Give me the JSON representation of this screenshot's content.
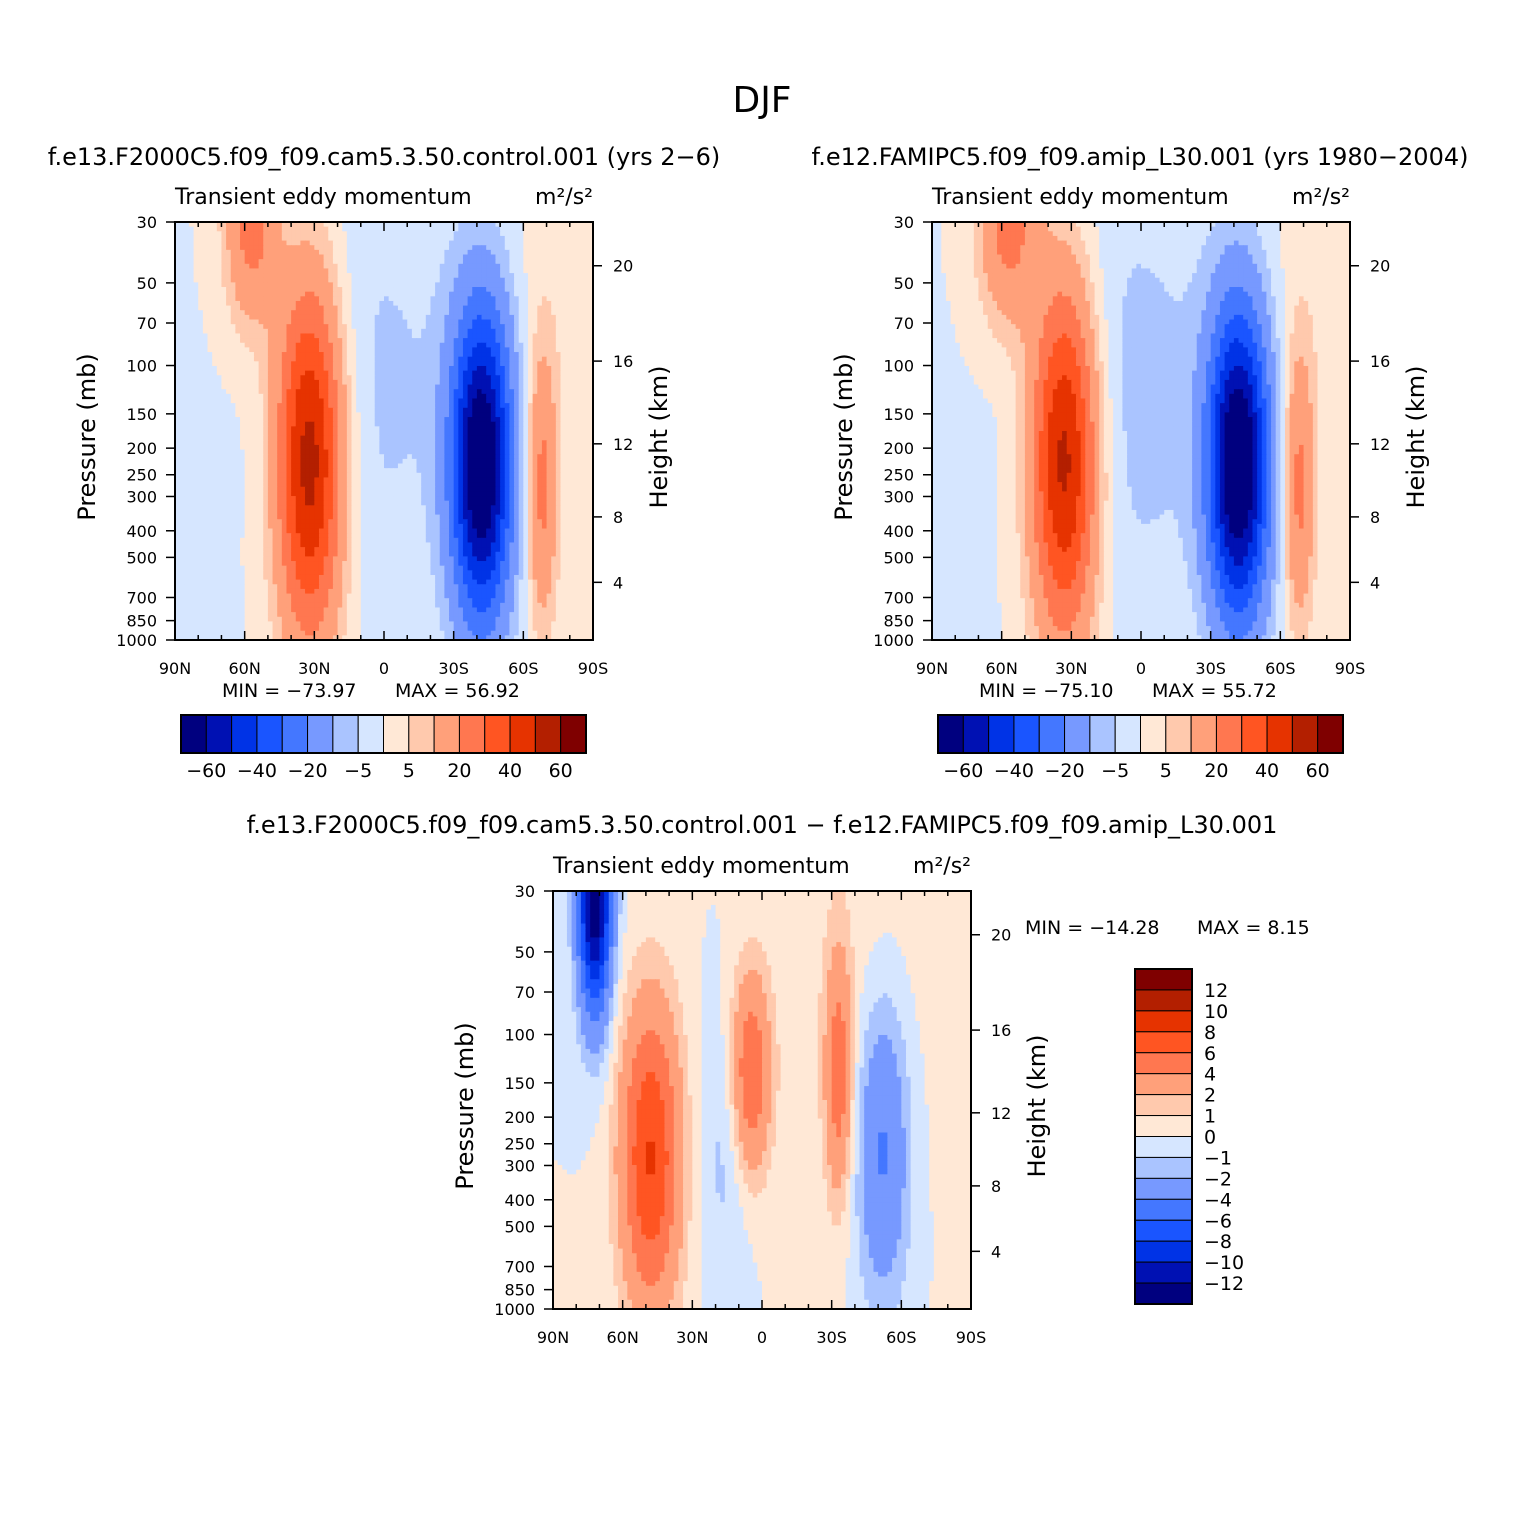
{
  "page_title": "DJF",
  "colors": {
    "main_levels": [
      "#00007f",
      "#0011b3",
      "#0033e6",
      "#1a55ff",
      "#4477ff",
      "#7799ff",
      "#aac4ff",
      "#d6e6ff",
      "#ffe8d6",
      "#ffc9ad",
      "#ffa07a",
      "#ff7750",
      "#ff5522",
      "#e63300",
      "#b31f00",
      "#7f0000"
    ],
    "diff_levels": [
      "#00007f",
      "#0011b3",
      "#0033e6",
      "#1a55ff",
      "#4477ff",
      "#7799ff",
      "#aac4ff",
      "#d6e6ff",
      "#ffe8d6",
      "#ffc9ad",
      "#ffa07a",
      "#ff7750",
      "#ff5522",
      "#e63300",
      "#b31f00",
      "#7f0000"
    ]
  },
  "chart_data": [
    {
      "id": "panel1",
      "type": "heatmap",
      "title": "f.e13.F2000C5.f09_f09.cam5.3.50.control.001 (yrs 2−6)",
      "subtitle": "Transient eddy momentum",
      "units": "m²/s²",
      "xlabel": "",
      "ylabel": "Pressure (mb)",
      "y2label": "Height (km)",
      "x_ticks": [
        "90N",
        "60N",
        "30N",
        "0",
        "30S",
        "60S",
        "90S"
      ],
      "x_range": [
        90,
        -90
      ],
      "y_ticks": [
        "30",
        "50",
        "70",
        "100",
        "150",
        "200",
        "250",
        "300",
        "400",
        "500",
        "700",
        "850",
        "1000"
      ],
      "y_range_mb": [
        30,
        1000
      ],
      "y2_ticks": [
        "20",
        "16",
        "12",
        "8",
        "4"
      ],
      "min_label": "MIN = −73.97",
      "max_label": "MAX =   56.92",
      "min": -73.97,
      "max": 56.92,
      "colorbar_labels": [
        "−60",
        "−40",
        "−20",
        "−5",
        "5",
        "20",
        "40",
        "60"
      ],
      "features": [
        {
          "lat": 32,
          "p": 220,
          "value": 56.92,
          "wx": 10,
          "wy": 1.05
        },
        {
          "lat": 57,
          "p": 30,
          "value": 25,
          "wx": 8,
          "wy": 0.6
        },
        {
          "lat": -42,
          "p": 230,
          "value": -73.97,
          "wx": 9,
          "wy": 0.9
        },
        {
          "lat": -68,
          "p": 280,
          "value": 22,
          "wx": 4.5,
          "wy": 0.8
        },
        {
          "lat": 5,
          "p": 120,
          "value": -6,
          "wx": 30,
          "wy": 1.4
        },
        {
          "lat": -75,
          "p": 60,
          "value": 3,
          "wx": 12,
          "wy": 1.5
        }
      ]
    },
    {
      "id": "panel2",
      "type": "heatmap",
      "title": "f.e12.FAMIPC5.f09_f09.amip_L30.001 (yrs 1980−2004)",
      "subtitle": "Transient eddy momentum",
      "units": "m²/s²",
      "xlabel": "",
      "ylabel": "Pressure (mb)",
      "y2label": "Height (km)",
      "x_ticks": [
        "90N",
        "60N",
        "30N",
        "0",
        "30S",
        "60S",
        "90S"
      ],
      "x_range": [
        90,
        -90
      ],
      "y_ticks": [
        "30",
        "50",
        "70",
        "100",
        "150",
        "200",
        "250",
        "300",
        "400",
        "500",
        "700",
        "850",
        "1000"
      ],
      "y_range_mb": [
        30,
        1000
      ],
      "y2_ticks": [
        "20",
        "16",
        "12",
        "8",
        "4"
      ],
      "min_label": "MIN = −75.10",
      "max_label": "MAX =   55.72",
      "min": -75.1,
      "max": 55.72,
      "colorbar_labels": [
        "−60",
        "−40",
        "−20",
        "−5",
        "5",
        "20",
        "40",
        "60"
      ],
      "features": [
        {
          "lat": 33,
          "p": 220,
          "value": 55.72,
          "wx": 10,
          "wy": 1.05
        },
        {
          "lat": 57,
          "p": 30,
          "value": 25,
          "wx": 9,
          "wy": 0.6
        },
        {
          "lat": -42,
          "p": 230,
          "value": -75.1,
          "wx": 9,
          "wy": 0.9
        },
        {
          "lat": -68,
          "p": 280,
          "value": 22,
          "wx": 4.5,
          "wy": 0.8
        },
        {
          "lat": 5,
          "p": 130,
          "value": -7,
          "wx": 30,
          "wy": 1.4
        },
        {
          "lat": -75,
          "p": 60,
          "value": 3,
          "wx": 12,
          "wy": 1.5
        }
      ]
    },
    {
      "id": "panel3",
      "type": "heatmap",
      "title": "f.e13.F2000C5.f09_f09.cam5.3.50.control.001 − f.e12.FAMIPC5.f09_f09.amip_L30.001",
      "subtitle": "Transient eddy momentum",
      "units": "m²/s²",
      "xlabel": "",
      "ylabel": "Pressure (mb)",
      "y2label": "Height (km)",
      "x_ticks": [
        "90N",
        "60N",
        "30N",
        "0",
        "30S",
        "60S",
        "90S"
      ],
      "x_range": [
        90,
        -90
      ],
      "y_ticks": [
        "30",
        "50",
        "70",
        "100",
        "150",
        "200",
        "250",
        "300",
        "400",
        "500",
        "700",
        "850",
        "1000"
      ],
      "y_range_mb": [
        30,
        1000
      ],
      "y2_ticks": [
        "20",
        "16",
        "12",
        "8",
        "4"
      ],
      "min_label": "MIN = −14.28",
      "max_label": "MAX =    8.15",
      "min": -14.28,
      "max": 8.15,
      "colorbar_labels": [
        "12",
        "10",
        "8",
        "6",
        "4",
        "2",
        "1",
        "0",
        "−1",
        "−2",
        "−4",
        "−6",
        "−8",
        "−10",
        "−12"
      ],
      "features": [
        {
          "lat": 72,
          "p": 30,
          "value": -14.28,
          "wx": 5,
          "wy": 0.7
        },
        {
          "lat": 48,
          "p": 280,
          "value": 8.15,
          "wx": 9,
          "wy": 0.9
        },
        {
          "lat": 5,
          "p": 140,
          "value": 6,
          "wx": 6,
          "wy": 0.6
        },
        {
          "lat": -33,
          "p": 140,
          "value": 5,
          "wx": 4,
          "wy": 0.7
        },
        {
          "lat": -52,
          "p": 260,
          "value": -4.5,
          "wx": 8,
          "wy": 0.9
        },
        {
          "lat": 15,
          "p": 250,
          "value": -1.5,
          "wx": 8,
          "wy": 0.8
        },
        {
          "lat": -40,
          "p": 60,
          "value": 0.7,
          "wx": 25,
          "wy": 1.5
        }
      ]
    }
  ]
}
